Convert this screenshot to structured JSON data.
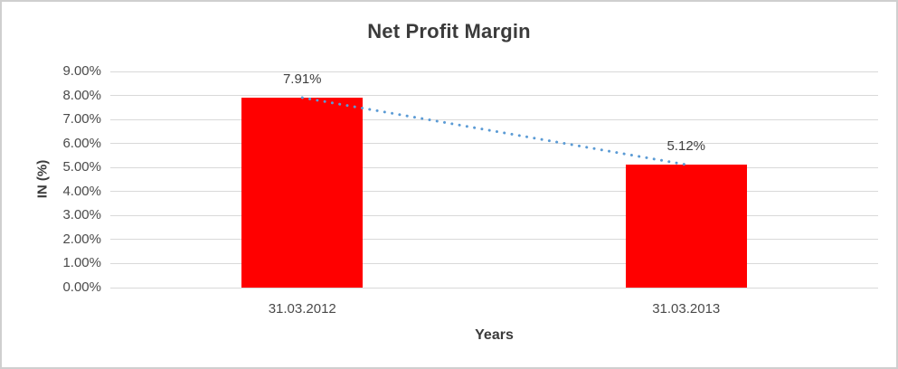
{
  "chart_data": {
    "type": "bar",
    "title": "Net Profit Margin",
    "xlabel": "Years",
    "ylabel": "IN (%)",
    "categories": [
      "31.03.2012",
      "31.03.2013"
    ],
    "values": [
      7.91,
      5.12
    ],
    "data_labels": [
      "7.91%",
      "5.12%"
    ],
    "ylim": [
      0,
      9
    ],
    "ytick_labels": [
      "0.00%",
      "1.00%",
      "2.00%",
      "3.00%",
      "4.00%",
      "5.00%",
      "6.00%",
      "7.00%",
      "8.00%",
      "9.00%"
    ],
    "grid": true,
    "legend": "none",
    "trendline": {
      "style": "dotted",
      "points": [
        7.91,
        5.12
      ]
    }
  },
  "colors": {
    "bar": "#FF0000",
    "trendline": "#5B9BD5",
    "gridline": "#D9D9D9",
    "frame_border": "#CFCFCF",
    "title_text": "#3B3B3B",
    "tick_text": "#4A4A4A"
  }
}
